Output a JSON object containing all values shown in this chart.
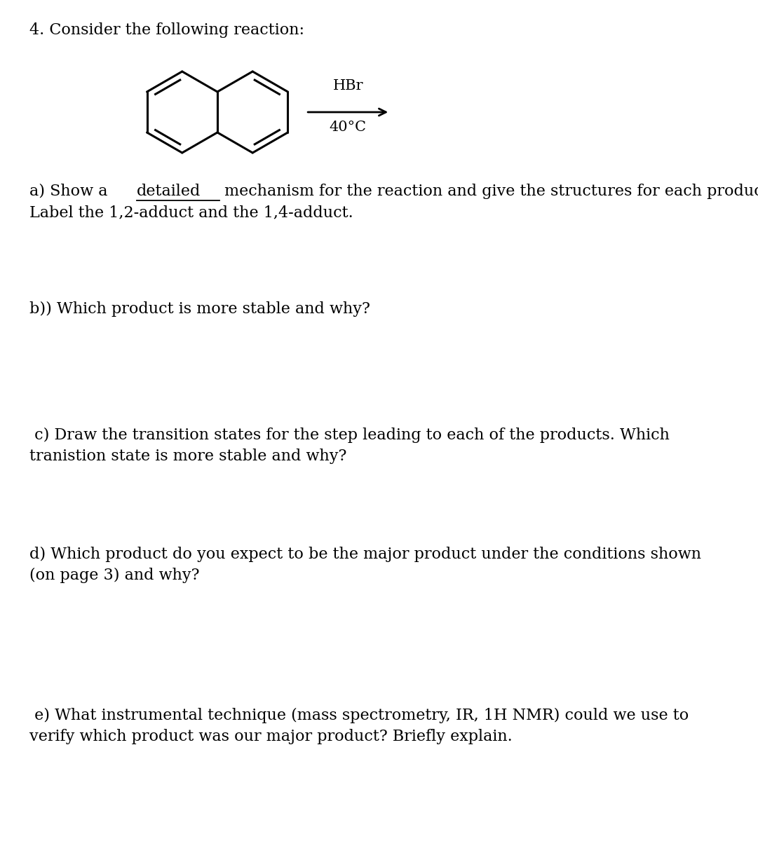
{
  "background_color": "#ffffff",
  "title_number": "4.",
  "title_text": "Consider the following reaction:",
  "reagent_above": "HBr",
  "reagent_below": "40°C",
  "question_b": "b)) Which product is more stable and why?",
  "question_c_line1": " c) Draw the transition states for the step leading to each of the products. Which",
  "question_c_line2": "tranistion state is more stable and why?",
  "question_d_line1": "d) Which product do you expect to be the major product under the conditions shown",
  "question_d_line2": "(on page 3) and why?",
  "question_e_line1": " e) What instrumental technique (mass spectrometry, IR, 1H NMR) could we use to",
  "question_e_line2": "verify which product was our major product? Briefly explain.",
  "line1_prefix": "a) Show a ",
  "line1_underlined": "detailed",
  "line1_suffix": " mechanism for the reaction and give the structures for each product.",
  "line2a": "Label the 1,2-adduct and the 1,4-adduct.",
  "font_size_body": 16,
  "text_color": "#000000"
}
